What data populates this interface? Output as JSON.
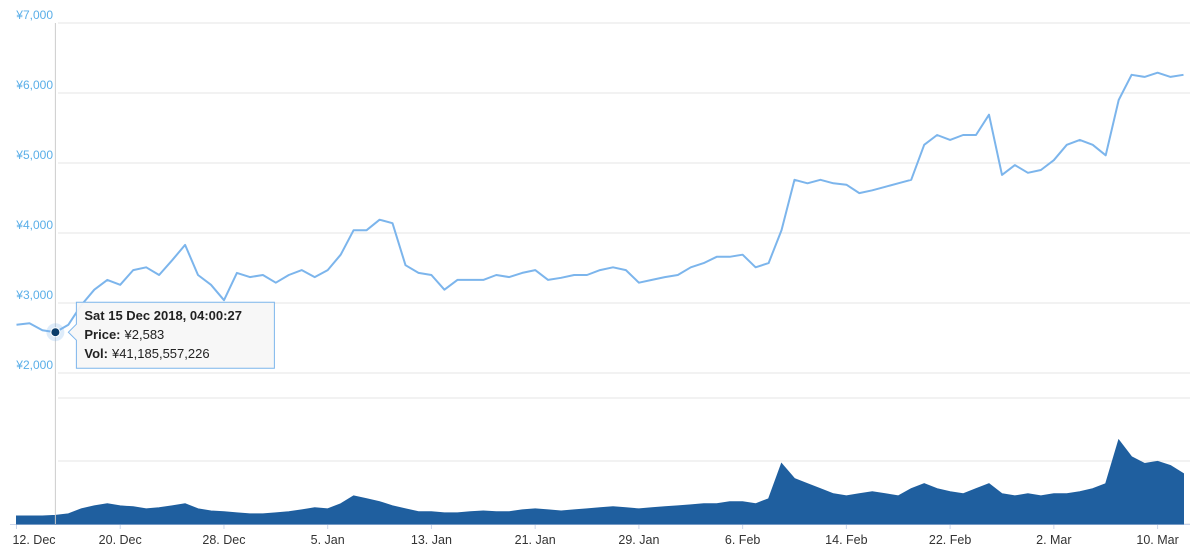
{
  "chart_data": [
    {
      "type": "line",
      "color": "#7cb5ec",
      "x": [
        "2018-12-12",
        "2018-12-13",
        "2018-12-14",
        "2018-12-15",
        "2018-12-16",
        "2018-12-17",
        "2018-12-18",
        "2018-12-19",
        "2018-12-20",
        "2018-12-21",
        "2018-12-22",
        "2018-12-23",
        "2018-12-24",
        "2018-12-25",
        "2018-12-26",
        "2018-12-27",
        "2018-12-28",
        "2018-12-29",
        "2018-12-30",
        "2018-12-31",
        "2019-01-01",
        "2019-01-02",
        "2019-01-03",
        "2019-01-04",
        "2019-01-05",
        "2019-01-06",
        "2019-01-07",
        "2019-01-08",
        "2019-01-09",
        "2019-01-10",
        "2019-01-11",
        "2019-01-12",
        "2019-01-13",
        "2019-01-14",
        "2019-01-15",
        "2019-01-16",
        "2019-01-17",
        "2019-01-18",
        "2019-01-19",
        "2019-01-20",
        "2019-01-21",
        "2019-01-22",
        "2019-01-23",
        "2019-01-24",
        "2019-01-25",
        "2019-01-26",
        "2019-01-27",
        "2019-01-28",
        "2019-01-29",
        "2019-01-30",
        "2019-01-31",
        "2019-02-01",
        "2019-02-02",
        "2019-02-03",
        "2019-02-04",
        "2019-02-05",
        "2019-02-06",
        "2019-02-07",
        "2019-02-08",
        "2019-02-09",
        "2019-02-10",
        "2019-02-11",
        "2019-02-12",
        "2019-02-13",
        "2019-02-14",
        "2019-02-15",
        "2019-02-16",
        "2019-02-17",
        "2019-02-18",
        "2019-02-19",
        "2019-02-20",
        "2019-02-21",
        "2019-02-22",
        "2019-02-23",
        "2019-02-24",
        "2019-02-25",
        "2019-02-26",
        "2019-02-27",
        "2019-02-28",
        "2019-03-01",
        "2019-03-02",
        "2019-03-03",
        "2019-03-04",
        "2019-03-05",
        "2019-03-06",
        "2019-03-07",
        "2019-03-08",
        "2019-03-09",
        "2019-03-10",
        "2019-03-11",
        "2019-03-12"
      ],
      "values": [
        2690,
        2710,
        2610,
        2583,
        2690,
        2970,
        3190,
        3330,
        3260,
        3470,
        3510,
        3400,
        3610,
        3830,
        3400,
        3260,
        3040,
        3430,
        3370,
        3400,
        3290,
        3400,
        3470,
        3370,
        3470,
        3690,
        4040,
        4040,
        4190,
        4140,
        3540,
        3430,
        3400,
        3190,
        3330,
        3330,
        3330,
        3400,
        3370,
        3430,
        3470,
        3330,
        3360,
        3400,
        3400,
        3470,
        3510,
        3470,
        3290,
        3330,
        3370,
        3400,
        3510,
        3570,
        3660,
        3660,
        3690,
        3510,
        3570,
        4040,
        4760,
        4710,
        4760,
        4710,
        4690,
        4570,
        4610,
        4660,
        4710,
        4760,
        5260,
        5400,
        5330,
        5400,
        5400,
        5690,
        4830,
        4970,
        4860,
        4900,
        5040,
        5260,
        5330,
        5260,
        5110,
        5900,
        6260,
        6230,
        6290,
        6230,
        6260
      ],
      "xlim": [
        "2018-12-11T12:00",
        "2019-03-12T12:00"
      ],
      "ylim": [
        2000,
        7000
      ],
      "yticks": [
        {
          "value": 2000,
          "label": "¥2,000"
        },
        {
          "value": 3000,
          "label": "¥3,000"
        },
        {
          "value": 4000,
          "label": "¥4,000"
        },
        {
          "value": 5000,
          "label": "¥5,000"
        },
        {
          "value": 6000,
          "label": "¥6,000"
        },
        {
          "value": 7000,
          "label": "¥7,000"
        }
      ],
      "grid": true,
      "tooltip": {
        "title": "Sat 15 Dec 2018, 04:00:27",
        "price_label": "Price:",
        "price": "¥2,583",
        "vol_label": "Vol:",
        "vol": "¥41,185,557,226"
      }
    },
    {
      "type": "area",
      "color": "#1f5f9f",
      "x": [
        "2018-12-12",
        "2018-12-13",
        "2018-12-14",
        "2018-12-15",
        "2018-12-16",
        "2018-12-17",
        "2018-12-18",
        "2018-12-19",
        "2018-12-20",
        "2018-12-21",
        "2018-12-22",
        "2018-12-23",
        "2018-12-24",
        "2018-12-25",
        "2018-12-26",
        "2018-12-27",
        "2018-12-28",
        "2018-12-29",
        "2018-12-30",
        "2018-12-31",
        "2019-01-01",
        "2019-01-02",
        "2019-01-03",
        "2019-01-04",
        "2019-01-05",
        "2019-01-06",
        "2019-01-07",
        "2019-01-08",
        "2019-01-09",
        "2019-01-10",
        "2019-01-11",
        "2019-01-12",
        "2019-01-13",
        "2019-01-14",
        "2019-01-15",
        "2019-01-16",
        "2019-01-17",
        "2019-01-18",
        "2019-01-19",
        "2019-01-20",
        "2019-01-21",
        "2019-01-22",
        "2019-01-23",
        "2019-01-24",
        "2019-01-25",
        "2019-01-26",
        "2019-01-27",
        "2019-01-28",
        "2019-01-29",
        "2019-01-30",
        "2019-01-31",
        "2019-02-01",
        "2019-02-02",
        "2019-02-03",
        "2019-02-04",
        "2019-02-05",
        "2019-02-06",
        "2019-02-07",
        "2019-02-08",
        "2019-02-09",
        "2019-02-10",
        "2019-02-11",
        "2019-02-12",
        "2019-02-13",
        "2019-02-14",
        "2019-02-15",
        "2019-02-16",
        "2019-02-17",
        "2019-02-18",
        "2019-02-19",
        "2019-02-20",
        "2019-02-21",
        "2019-02-22",
        "2019-02-23",
        "2019-02-24",
        "2019-02-25",
        "2019-02-26",
        "2019-02-27",
        "2019-02-28",
        "2019-03-01",
        "2019-03-02",
        "2019-03-03",
        "2019-03-04",
        "2019-03-05",
        "2019-03-06",
        "2019-03-07",
        "2019-03-08",
        "2019-03-09",
        "2019-03-10",
        "2019-03-11",
        "2019-03-12"
      ],
      "values": [
        38000000000.0,
        38000000000.0,
        38000000000.0,
        41185557226,
        48000000000.0,
        72000000000.0,
        86000000000.0,
        96000000000.0,
        86000000000.0,
        82000000000.0,
        72000000000.0,
        77000000000.0,
        86000000000.0,
        96000000000.0,
        72000000000.0,
        62000000000.0,
        58000000000.0,
        53000000000.0,
        48000000000.0,
        48000000000.0,
        53000000000.0,
        58000000000.0,
        67000000000.0,
        77000000000.0,
        72000000000.0,
        96000000000.0,
        134000000000.0,
        120000000000.0,
        106000000000.0,
        86000000000.0,
        72000000000.0,
        58000000000.0,
        58000000000.0,
        53000000000.0,
        53000000000.0,
        58000000000.0,
        62000000000.0,
        58000000000.0,
        58000000000.0,
        67000000000.0,
        72000000000.0,
        67000000000.0,
        62000000000.0,
        67000000000.0,
        72000000000.0,
        77000000000.0,
        82000000000.0,
        77000000000.0,
        72000000000.0,
        77000000000.0,
        82000000000.0,
        86000000000.0,
        91000000000.0,
        96000000000.0,
        96000000000.0,
        106000000000.0,
        106000000000.0,
        96000000000.0,
        120000000000.0,
        288000000000.0,
        216000000000.0,
        192000000000.0,
        168000000000.0,
        144000000000.0,
        134000000000.0,
        144000000000.0,
        154000000000.0,
        144000000000.0,
        134000000000.0,
        168000000000.0,
        192000000000.0,
        168000000000.0,
        154000000000.0,
        144000000000.0,
        168000000000.0,
        192000000000.0,
        144000000000.0,
        134000000000.0,
        144000000000.0,
        134000000000.0,
        144000000000.0,
        144000000000.0,
        154000000000.0,
        168000000000.0,
        192000000000.0,
        400000000000.0,
        320000000000.0,
        288000000000.0,
        298000000000.0,
        278000000000.0,
        240000000000.0
      ],
      "xlim": [
        "2018-12-11T12:00",
        "2019-03-12T12:00"
      ],
      "xticks": [
        {
          "value": "2018-12-12",
          "label": "12. Dec"
        },
        {
          "value": "2018-12-20",
          "label": "20. Dec"
        },
        {
          "value": "2018-12-28",
          "label": "28. Dec"
        },
        {
          "value": "2019-01-05",
          "label": "5. Jan"
        },
        {
          "value": "2019-01-13",
          "label": "13. Jan"
        },
        {
          "value": "2019-01-21",
          "label": "21. Jan"
        },
        {
          "value": "2019-01-29",
          "label": "29. Jan"
        },
        {
          "value": "2019-02-06",
          "label": "6. Feb"
        },
        {
          "value": "2019-02-14",
          "label": "14. Feb"
        },
        {
          "value": "2019-02-22",
          "label": "22. Feb"
        },
        {
          "value": "2019-03-02",
          "label": "2. Mar"
        },
        {
          "value": "2019-03-10",
          "label": "10. Mar"
        }
      ],
      "ylim": [
        0,
        600000000000
      ],
      "yticks": [
        0,
        300000000000,
        600000000000
      ],
      "grid": true,
      "tick_labels": false
    }
  ]
}
